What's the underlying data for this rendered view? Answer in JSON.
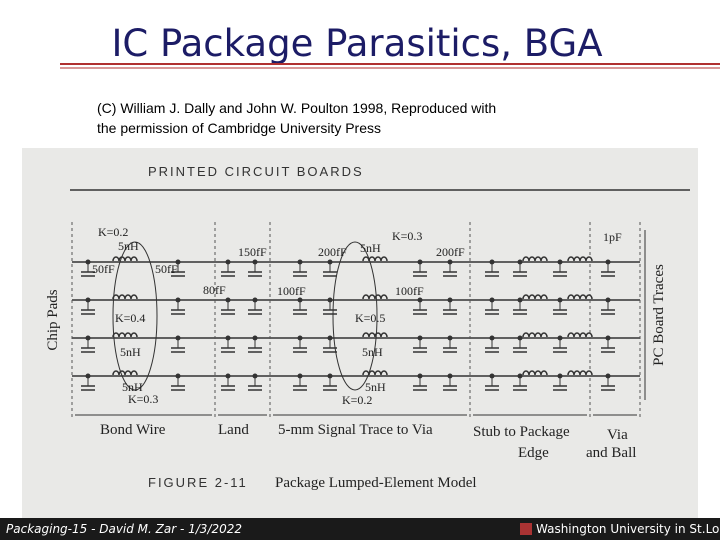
{
  "header": {
    "title": "IC Package Parasitics, BGA"
  },
  "credit": {
    "lines": [
      "(C) William J. Dally and John W. Poulton  1998,  Reproduced with",
      "the permission of Cambridge University Press"
    ]
  },
  "figure": {
    "heading": "PRINTED CIRCUIT BOARDS",
    "labels": [
      "K=0.2",
      "5nH",
      "50fF",
      "50fF",
      "K=0.4",
      "5nH",
      "5nH",
      "K=0.3",
      "150fF",
      "80fF",
      "200fF",
      "5nH",
      "K=0.3",
      "200fF",
      "100fF",
      "100fF",
      "K=0.5",
      "5nH",
      "5nH",
      "K=0.2",
      "1pF"
    ],
    "axis_left": "Chip Pads",
    "axis_right": "PC Board Traces",
    "sections": [
      "Bond Wire",
      "Land",
      "5-mm Signal Trace to Via",
      "Stub to Package",
      "Edge",
      "Via",
      "and Ball"
    ],
    "caption_number": "FIGURE 2-11",
    "caption_title": "Package Lumped-Element Model"
  },
  "footer": {
    "left": "Packaging-15 - David M. Zar - 1/3/2022",
    "right": "Washington University in St.Louis"
  }
}
